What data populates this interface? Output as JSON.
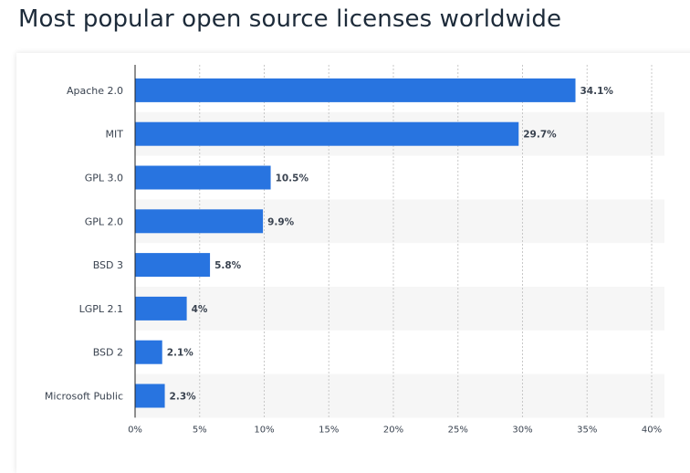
{
  "page": {
    "title": "Most popular open source licenses worldwide"
  },
  "colors": {
    "bar": "#2874e0",
    "band": "#f6f6f6",
    "grid": "#c8c8c8",
    "axis": "#222222"
  },
  "chart_data": {
    "type": "bar",
    "orientation": "horizontal",
    "title": "Most popular open source licenses worldwide",
    "xlabel": "",
    "ylabel": "",
    "categories": [
      "Apache 2.0",
      "MIT",
      "GPL 3.0",
      "GPL 2.0",
      "BSD 3",
      "LGPL 2.1",
      "BSD 2",
      "Microsoft Public"
    ],
    "values": [
      34.1,
      29.7,
      10.5,
      9.9,
      5.8,
      4,
      2.1,
      2.3
    ],
    "value_labels": [
      "34.1%",
      "29.7%",
      "10.5%",
      "9.9%",
      "5.8%",
      "4%",
      "2.1%",
      "2.3%"
    ],
    "xlim": [
      0,
      40
    ],
    "xticks": [
      0,
      5,
      10,
      15,
      20,
      25,
      30,
      35,
      40
    ],
    "xtick_labels": [
      "0%",
      "5%",
      "10%",
      "15%",
      "20%",
      "25%",
      "30%",
      "35%",
      "40%"
    ],
    "grid": "vertical dotted",
    "legend": "none"
  }
}
